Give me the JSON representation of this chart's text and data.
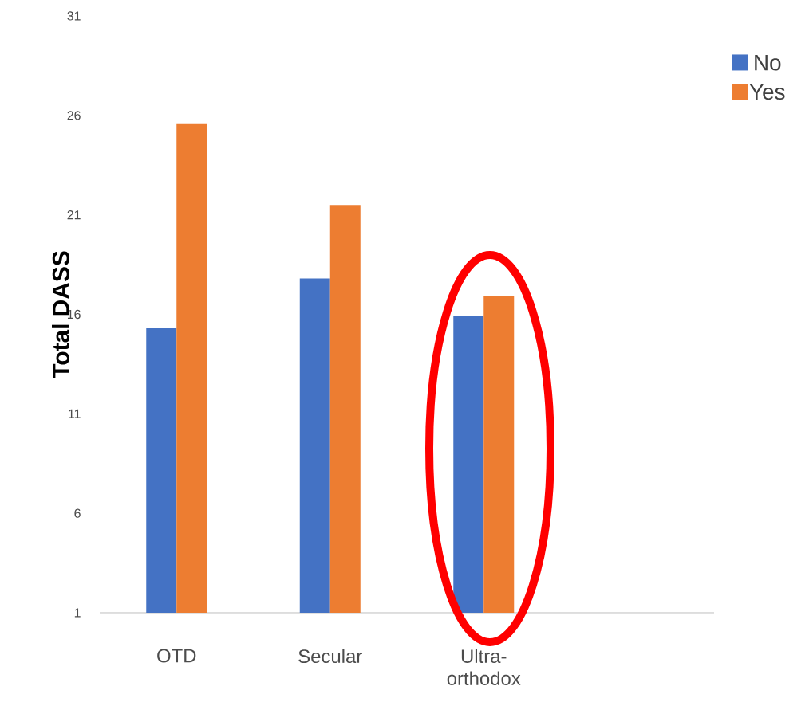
{
  "chart_data": {
    "type": "bar",
    "ylabel": "Total DASS",
    "categories": [
      "OTD",
      "Secular",
      "Ultra-orthodox",
      null
    ],
    "series": [
      {
        "name": "No",
        "color": "#4472c4",
        "values": [
          15.3,
          17.8,
          15.9,
          null
        ]
      },
      {
        "name": "Yes",
        "color": "#ed7d31",
        "values": [
          25.6,
          21.5,
          16.9,
          null
        ]
      }
    ],
    "ylim": [
      1,
      31
    ],
    "yticks": [
      1,
      6,
      11,
      16,
      21,
      26,
      31
    ],
    "legend": "top right"
  }
}
